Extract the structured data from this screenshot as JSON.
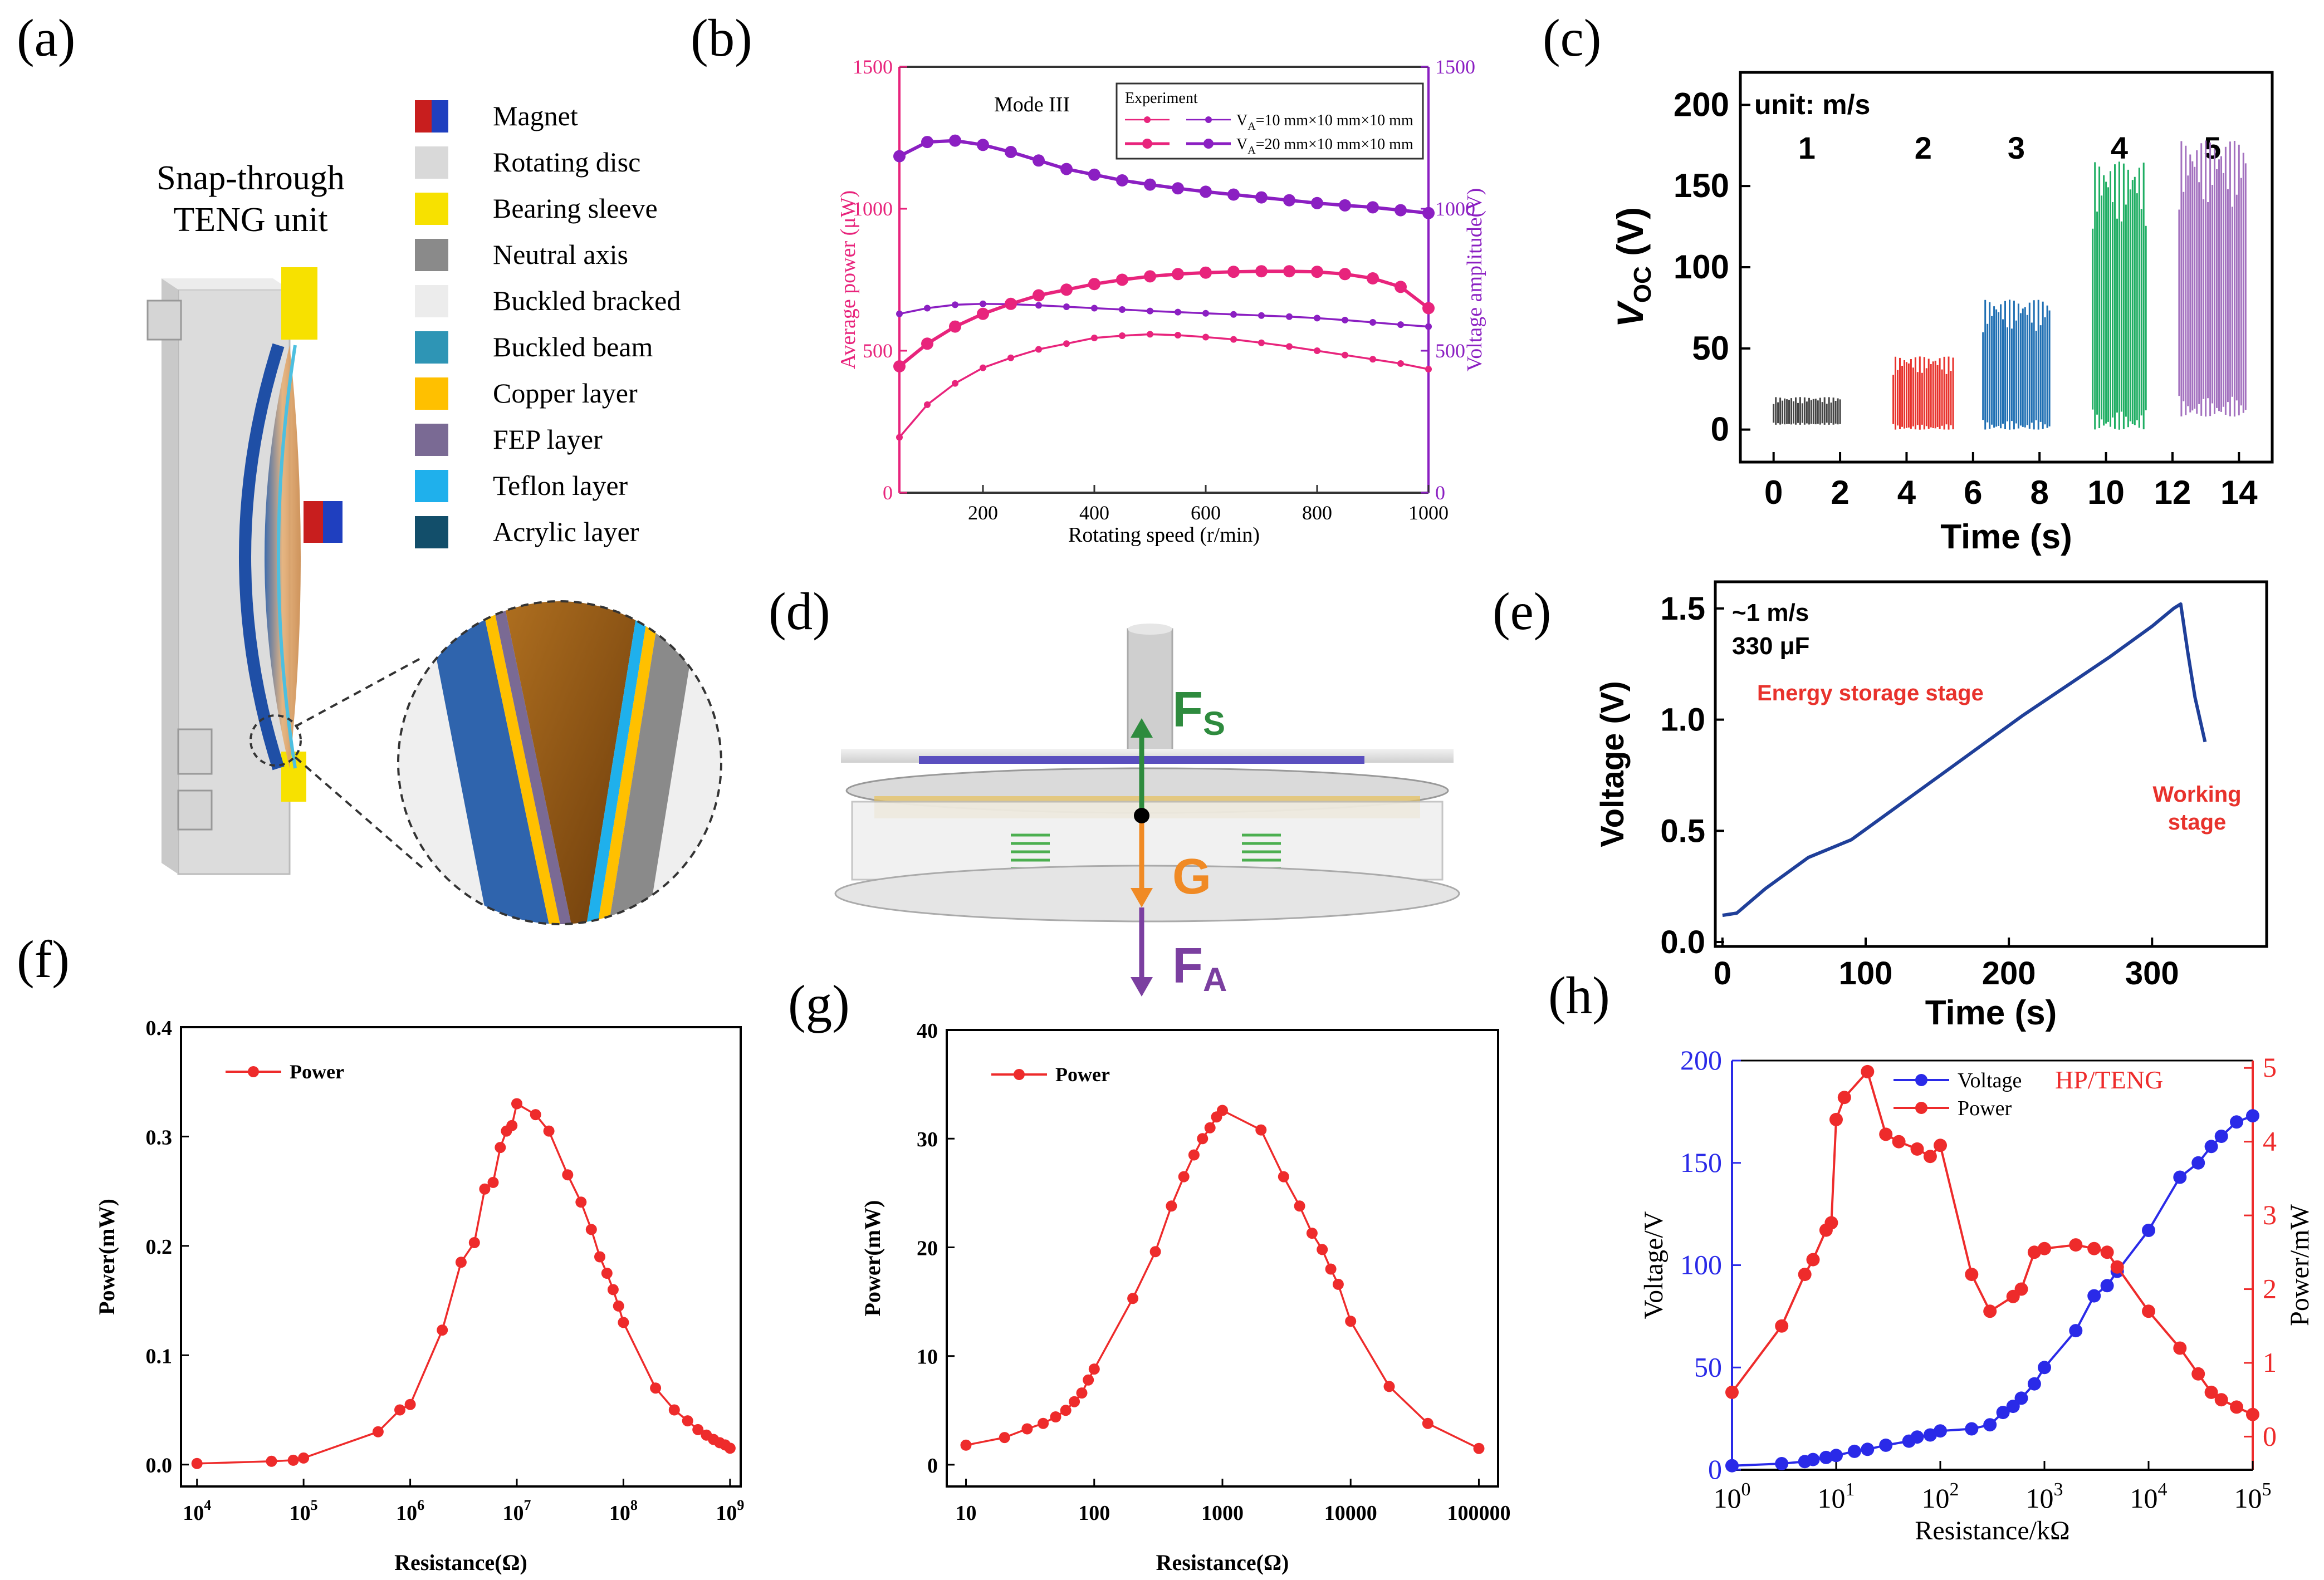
{
  "panel_labels": {
    "a": "(a)",
    "b": "(b)",
    "c": "(c)",
    "d": "(d)",
    "e": "(e)",
    "f": "(f)",
    "g": "(g)",
    "h": "(h)"
  },
  "panel_a": {
    "title_line1": "Snap-through",
    "title_line2": "TENG unit",
    "legend": [
      {
        "label": "Magnet",
        "color": "#c81e1e",
        "color2": "#1f3fbf"
      },
      {
        "label": "Rotating disc",
        "color": "#d9d9d9"
      },
      {
        "label": "Bearing sleeve",
        "color": "#f7e100"
      },
      {
        "label": "Neutral axis",
        "color": "#8a8a8a"
      },
      {
        "label": "Buckled bracked",
        "color": "#ececec"
      },
      {
        "label": "Buckled beam",
        "color": "#2e95b5"
      },
      {
        "label": "Copper layer",
        "color": "#ffc000"
      },
      {
        "label": "FEP layer",
        "color": "#7a6a94"
      },
      {
        "label": "Teflon layer",
        "color": "#1fb0ec"
      },
      {
        "label": "Acrylic layer",
        "color": "#124e6a"
      }
    ]
  },
  "panel_d": {
    "fs_main": "F",
    "fs_sub": "S",
    "g_label": "G",
    "fa_main": "F",
    "fa_sub": "A"
  },
  "chart_data": [
    {
      "id": "b",
      "type": "line",
      "annotation": "Mode III",
      "legend_title": "Experiment",
      "legend_series_v": "V",
      "legend_series_sub": "A",
      "legend_series_1_rest": "=10 mm×10 mm×10 mm",
      "legend_series_2_rest": "=20 mm×10 mm×10 mm",
      "xlabel": "Rotating speed (r/min)",
      "ylabel_left": "Average power (μW)",
      "ylabel_right": "Voltage amplitude(V)",
      "xlim": [
        50,
        1000
      ],
      "ylim_left": [
        0,
        1500
      ],
      "ylim_right": [
        0,
        1500
      ],
      "xticks": [
        "200",
        "400",
        "600",
        "800",
        "1000"
      ],
      "yticks_left": [
        "0",
        "500",
        "1000",
        "1500"
      ],
      "yticks_right": [
        "0",
        "500",
        "1000",
        "1500"
      ],
      "colors": {
        "power": "#e8247c",
        "voltage": "#8b1fc2"
      },
      "series": [
        {
          "name": "power 10mm",
          "axis": "left",
          "color": "#e8247c",
          "x": [
            50,
            100,
            150,
            200,
            250,
            300,
            350,
            400,
            450,
            500,
            550,
            600,
            650,
            700,
            750,
            800,
            850,
            900,
            950,
            1000
          ],
          "values": [
            195,
            310,
            385,
            440,
            475,
            505,
            525,
            545,
            553,
            558,
            555,
            548,
            540,
            528,
            515,
            500,
            485,
            470,
            455,
            435
          ]
        },
        {
          "name": "voltage 10mm",
          "axis": "right",
          "color": "#8b1fc2",
          "x": [
            50,
            100,
            150,
            200,
            250,
            300,
            350,
            400,
            450,
            500,
            550,
            600,
            650,
            700,
            750,
            800,
            850,
            900,
            950,
            1000
          ],
          "values": [
            630,
            650,
            662,
            665,
            664,
            660,
            655,
            650,
            645,
            640,
            636,
            632,
            628,
            624,
            620,
            615,
            608,
            600,
            592,
            585
          ]
        },
        {
          "name": "power 20mm",
          "axis": "left",
          "color": "#e8247c",
          "x": [
            50,
            100,
            150,
            200,
            250,
            300,
            350,
            400,
            450,
            500,
            550,
            600,
            650,
            700,
            750,
            800,
            850,
            900,
            950,
            1000
          ],
          "values": [
            445,
            525,
            585,
            630,
            665,
            695,
            715,
            735,
            750,
            762,
            770,
            775,
            778,
            780,
            780,
            778,
            770,
            755,
            725,
            650
          ]
        },
        {
          "name": "voltage 20mm",
          "axis": "right",
          "color": "#8b1fc2",
          "x": [
            50,
            100,
            150,
            200,
            250,
            300,
            350,
            400,
            450,
            500,
            550,
            600,
            650,
            700,
            750,
            800,
            850,
            900,
            950,
            1000
          ],
          "values": [
            1185,
            1235,
            1240,
            1225,
            1200,
            1170,
            1140,
            1120,
            1100,
            1085,
            1072,
            1060,
            1050,
            1040,
            1030,
            1020,
            1012,
            1005,
            995,
            985
          ]
        }
      ]
    },
    {
      "id": "c",
      "type": "bar",
      "annotation": "unit: m/s",
      "speed_labels": [
        "1",
        "2",
        "3",
        "4",
        "5"
      ],
      "xlabel": "Time (s)",
      "ylabel_main": "V",
      "ylabel_sub": "OC",
      "ylabel_rest": " (V)",
      "xlim": [
        -1,
        15
      ],
      "ylim": [
        -20,
        220
      ],
      "xticks": [
        "0",
        "2",
        "4",
        "6",
        "8",
        "10",
        "12",
        "14"
      ],
      "yticks": [
        "0",
        "50",
        "100",
        "150",
        "200"
      ],
      "bursts": [
        {
          "speed": "1",
          "t": [
            0,
            2
          ],
          "low": 3,
          "high": 20,
          "color": "#444444"
        },
        {
          "speed": "2",
          "t": [
            3.6,
            5.4
          ],
          "low": 0,
          "high": 45,
          "color": "#e8322c"
        },
        {
          "speed": "3",
          "t": [
            6.3,
            8.3
          ],
          "low": 0,
          "high": 80,
          "color": "#1f6fb3"
        },
        {
          "speed": "4",
          "t": [
            9.6,
            11.2
          ],
          "low": 0,
          "high": 165,
          "color": "#1fae63"
        },
        {
          "speed": "5",
          "t": [
            12.2,
            14.2
          ],
          "low": 8,
          "high": 178,
          "color": "#a371bf"
        }
      ]
    },
    {
      "id": "e",
      "type": "line",
      "annotation_line1": "~1 m/s",
      "annotation_line2": "330 μF",
      "stage1": "Energy storage stage",
      "stage2_line1": "Working",
      "stage2_line2": "stage",
      "xlabel": "Time (s)",
      "ylabel": "Voltage (V)",
      "xlim": [
        -5,
        380
      ],
      "ylim": [
        -0.02,
        1.62
      ],
      "xticks": [
        "0",
        "100",
        "200",
        "300"
      ],
      "yticks": [
        "0.0",
        "0.5",
        "1.0",
        "1.5"
      ],
      "series": [
        {
          "name": "voltage",
          "color": "#1f3f99",
          "x": [
            0,
            10,
            30,
            60,
            90,
            120,
            150,
            180,
            210,
            240,
            270,
            300,
            315,
            320,
            325,
            330,
            337
          ],
          "values": [
            0.12,
            0.13,
            0.24,
            0.38,
            0.46,
            0.6,
            0.74,
            0.88,
            1.02,
            1.15,
            1.28,
            1.42,
            1.5,
            1.52,
            1.3,
            1.1,
            0.9
          ]
        }
      ]
    },
    {
      "id": "f",
      "type": "line",
      "legend": "Power",
      "xlabel": "Resistance(Ω)",
      "ylabel": "Power(mW)",
      "xscale": "log",
      "xlim_log10": [
        3.85,
        9.1
      ],
      "ylim": [
        -0.02,
        0.4
      ],
      "xticks": [
        {
          "b": "10",
          "e": "4"
        },
        {
          "b": "10",
          "e": "5"
        },
        {
          "b": "10",
          "e": "6"
        },
        {
          "b": "10",
          "e": "7"
        },
        {
          "b": "10",
          "e": "8"
        },
        {
          "b": "10",
          "e": "9"
        }
      ],
      "yticks": [
        "0.0",
        "0.1",
        "0.2",
        "0.3",
        "0.4"
      ],
      "series": [
        {
          "name": "Power",
          "color": "#ee2b2b",
          "x": [
            10000,
            50000,
            80000,
            100000,
            500000,
            800000,
            1000000,
            2000000,
            3000000,
            4000000,
            5000000,
            6000000,
            7000000,
            8000000,
            9000000,
            10000000,
            15000000,
            20000000,
            30000000,
            40000000,
            50000000,
            60000000,
            70000000,
            80000000,
            90000000,
            100000000,
            200000000,
            300000000,
            400000000,
            500000000,
            600000000,
            700000000,
            800000000,
            900000000,
            1000000000
          ],
          "values": [
            0.001,
            0.003,
            0.004,
            0.006,
            0.03,
            0.05,
            0.055,
            0.123,
            0.185,
            0.203,
            0.252,
            0.258,
            0.29,
            0.305,
            0.31,
            0.33,
            0.32,
            0.305,
            0.265,
            0.24,
            0.215,
            0.19,
            0.175,
            0.16,
            0.145,
            0.13,
            0.07,
            0.05,
            0.04,
            0.032,
            0.027,
            0.023,
            0.02,
            0.018,
            0.015
          ]
        }
      ]
    },
    {
      "id": "g",
      "type": "line",
      "legend": "Power",
      "xlabel": "Resistance(Ω)",
      "ylabel": "Power(mW)",
      "xscale": "log",
      "xlim_log10": [
        0.85,
        5.15
      ],
      "ylim": [
        -2,
        40
      ],
      "xticks": [
        "10",
        "100",
        "1000",
        "10000",
        "100000"
      ],
      "yticks": [
        "0",
        "10",
        "20",
        "30",
        "40"
      ],
      "series": [
        {
          "name": "Power",
          "color": "#ee2b2b",
          "x": [
            10,
            20,
            30,
            40,
            50,
            60,
            70,
            80,
            90,
            100,
            200,
            300,
            400,
            500,
            600,
            700,
            800,
            900,
            1000,
            2000,
            3000,
            4000,
            5000,
            6000,
            7000,
            8000,
            10000,
            20000,
            40000,
            100000
          ],
          "values": [
            1.8,
            2.5,
            3.3,
            3.8,
            4.4,
            5.0,
            5.8,
            6.6,
            7.8,
            8.8,
            15.3,
            19.6,
            23.8,
            26.5,
            28.5,
            30.0,
            31.0,
            32.0,
            32.6,
            30.8,
            26.5,
            23.8,
            21.3,
            19.8,
            18.0,
            16.6,
            13.2,
            7.2,
            3.8,
            1.5
          ]
        }
      ]
    },
    {
      "id": "h",
      "type": "line",
      "annotation": "HP/TENG",
      "xlabel": "Resistance/kΩ",
      "ylabel_left": "Voltage/V",
      "ylabel_right": "Power/mW",
      "xscale": "log",
      "xlim_log10": [
        0,
        5
      ],
      "ylim_left": [
        0,
        200
      ],
      "ylim_right": [
        -0.45,
        5.1
      ],
      "xticks": [
        {
          "b": "10",
          "e": "0"
        },
        {
          "b": "10",
          "e": "1"
        },
        {
          "b": "10",
          "e": "2"
        },
        {
          "b": "10",
          "e": "3"
        },
        {
          "b": "10",
          "e": "4"
        },
        {
          "b": "10",
          "e": "5"
        }
      ],
      "yticks_left": [
        "0",
        "50",
        "100",
        "150",
        "200"
      ],
      "yticks_right": [
        "0",
        "1",
        "2",
        "3",
        "4",
        "5"
      ],
      "series": [
        {
          "name": "Voltage",
          "axis": "left",
          "color": "#2a2ae8",
          "x": [
            1,
            3,
            5,
            6,
            8,
            10,
            15,
            20,
            30,
            50,
            60,
            80,
            100,
            200,
            300,
            400,
            500,
            600,
            800,
            1000,
            2000,
            3000,
            4000,
            5000,
            10000,
            20000,
            30000,
            40000,
            50000,
            70000,
            100000
          ],
          "values": [
            2,
            3,
            4,
            5,
            6,
            7,
            9,
            10,
            12,
            14,
            16,
            17,
            19,
            20,
            22,
            28,
            31,
            35,
            42,
            50,
            68,
            85,
            90,
            97,
            117,
            143,
            150,
            158,
            163,
            170,
            173
          ]
        },
        {
          "name": "Power",
          "axis": "right",
          "color": "#ee2b2b",
          "x": [
            1,
            3,
            5,
            6,
            8,
            9,
            10,
            12,
            20,
            30,
            40,
            60,
            80,
            100,
            200,
            300,
            500,
            600,
            800,
            1000,
            2000,
            3000,
            4000,
            5000,
            10000,
            20000,
            30000,
            40000,
            50000,
            70000,
            100000
          ],
          "values": [
            0.6,
            1.5,
            2.2,
            2.4,
            2.8,
            2.9,
            4.3,
            4.6,
            4.95,
            4.1,
            4.0,
            3.9,
            3.8,
            3.95,
            2.2,
            1.7,
            1.9,
            2.0,
            2.5,
            2.55,
            2.6,
            2.55,
            2.5,
            2.3,
            1.7,
            1.2,
            0.85,
            0.6,
            0.5,
            0.4,
            0.3
          ]
        }
      ],
      "legend": [
        "Voltage",
        "Power"
      ]
    }
  ]
}
